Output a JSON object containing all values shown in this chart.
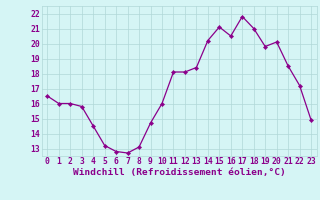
{
  "x": [
    0,
    1,
    2,
    3,
    4,
    5,
    6,
    7,
    8,
    9,
    10,
    11,
    12,
    13,
    14,
    15,
    16,
    17,
    18,
    19,
    20,
    21,
    22,
    23
  ],
  "y": [
    16.5,
    16.0,
    16.0,
    15.8,
    14.5,
    13.2,
    12.8,
    12.7,
    13.1,
    14.7,
    16.0,
    18.1,
    18.1,
    18.4,
    20.2,
    21.1,
    20.5,
    21.8,
    21.0,
    19.8,
    20.1,
    18.5,
    17.2,
    14.9
  ],
  "line_color": "#8b008b",
  "marker": "D",
  "marker_size": 2.2,
  "bg_color": "#d5f5f5",
  "grid_color": "#b0d8d8",
  "tick_color": "#8b008b",
  "ylabel_vals": [
    13,
    14,
    15,
    16,
    17,
    18,
    19,
    20,
    21,
    22
  ],
  "ylim": [
    12.5,
    22.5
  ],
  "xlim": [
    -0.5,
    23.5
  ],
  "xlabel": "Windchill (Refroidissement éolien,°C)",
  "xticks": [
    0,
    1,
    2,
    3,
    4,
    5,
    6,
    7,
    8,
    9,
    10,
    11,
    12,
    13,
    14,
    15,
    16,
    17,
    18,
    19,
    20,
    21,
    22,
    23
  ],
  "tick_label_fontsize": 5.8,
  "xlabel_fontsize": 6.8,
  "linewidth": 0.9
}
